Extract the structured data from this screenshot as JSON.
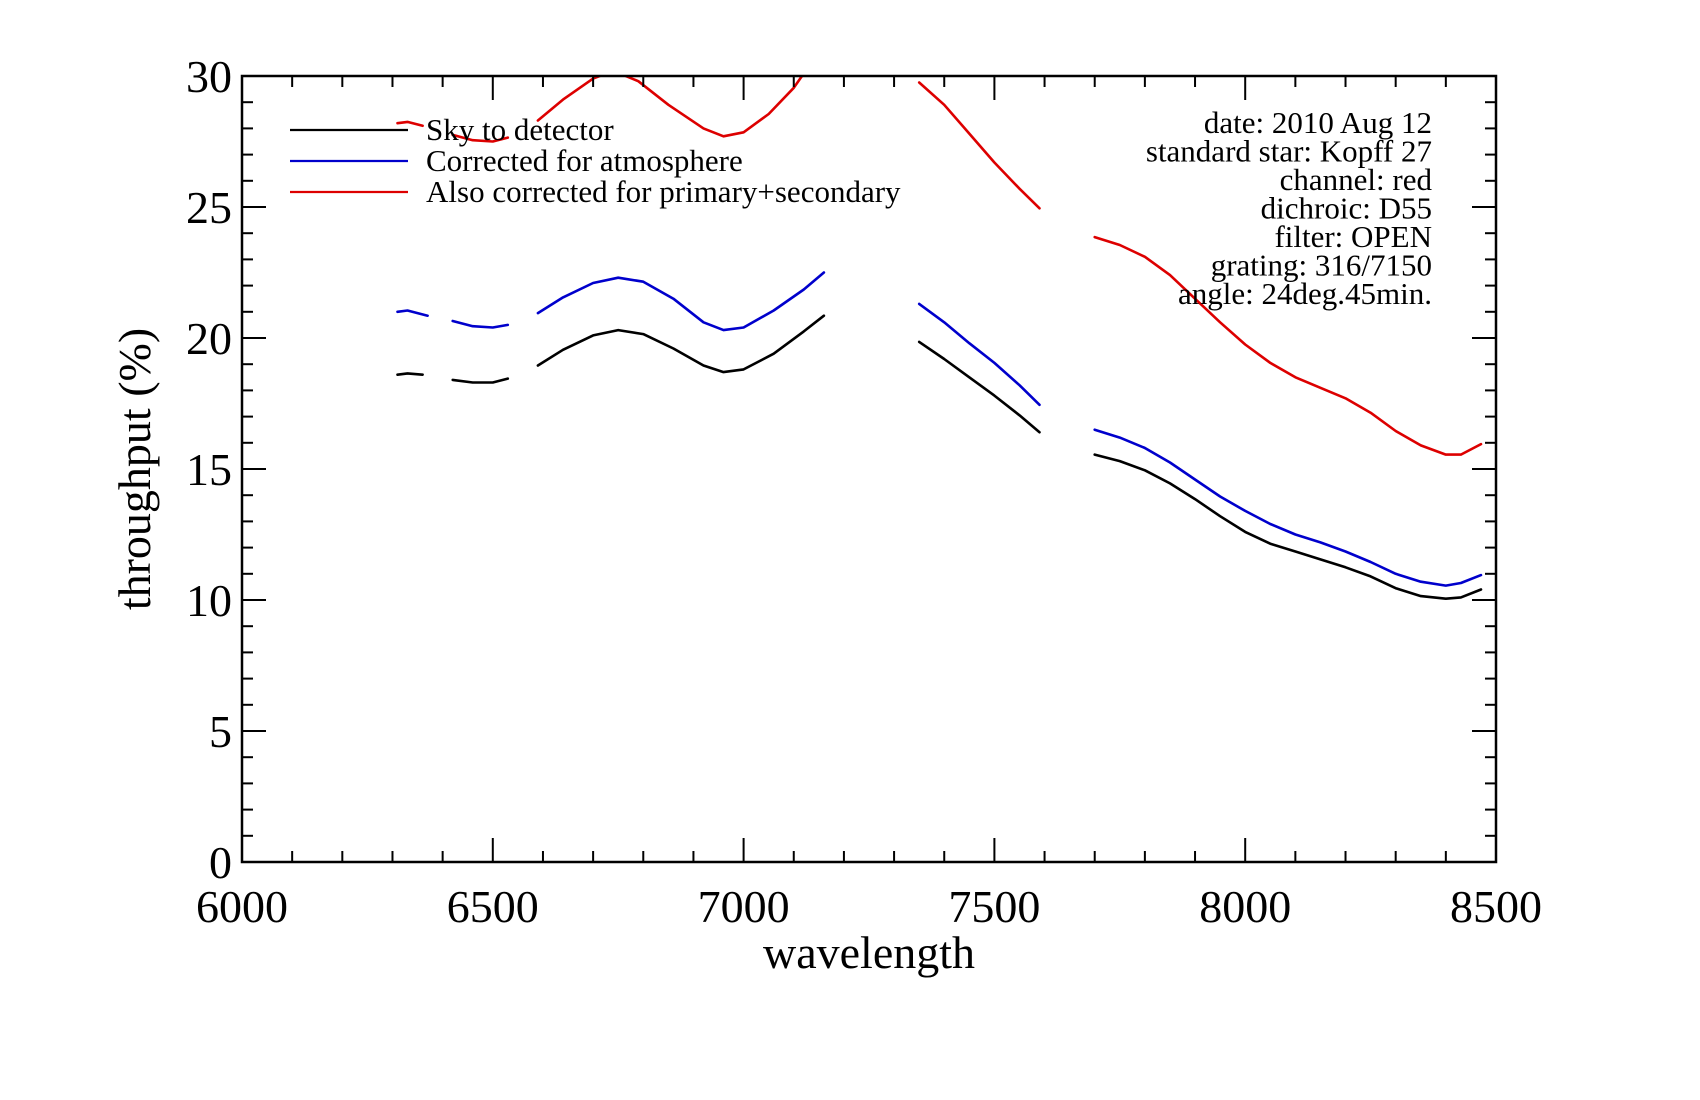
{
  "chart_data": {
    "type": "line",
    "xlabel": "wavelength",
    "ylabel": "throughput (%)",
    "xlim": [
      6000,
      8500
    ],
    "ylim": [
      0,
      30
    ],
    "x_ticks": [
      6000,
      6500,
      7000,
      7500,
      8000,
      8500
    ],
    "y_ticks": [
      0,
      5,
      10,
      15,
      20,
      25,
      30
    ],
    "x_minor_step": 100,
    "y_minor_step": 1,
    "grid": false,
    "legend_position": "top-left",
    "annotations": [
      "date: 2010 Aug 12",
      "standard star: Kopff 27",
      "channel: red",
      "dichroic: D55",
      "filter: OPEN",
      "grating: 316/7150",
      "angle: 24deg.45min."
    ],
    "series": [
      {
        "name": "Sky to detector",
        "color": "#000000",
        "segments": [
          [
            [
              6310,
              18.6
            ],
            [
              6330,
              18.65
            ],
            [
              6360,
              18.6
            ]
          ],
          [
            [
              6420,
              18.4
            ],
            [
              6460,
              18.3
            ],
            [
              6500,
              18.3
            ],
            [
              6530,
              18.45
            ]
          ],
          [
            [
              6590,
              18.95
            ],
            [
              6640,
              19.55
            ],
            [
              6700,
              20.1
            ],
            [
              6750,
              20.3
            ],
            [
              6800,
              20.15
            ],
            [
              6860,
              19.6
            ],
            [
              6920,
              18.95
            ],
            [
              6960,
              18.7
            ],
            [
              7000,
              18.8
            ],
            [
              7060,
              19.4
            ],
            [
              7120,
              20.25
            ],
            [
              7160,
              20.85
            ]
          ],
          [
            [
              7350,
              19.85
            ],
            [
              7400,
              19.2
            ],
            [
              7450,
              18.5
            ],
            [
              7500,
              17.8
            ],
            [
              7550,
              17.05
            ],
            [
              7590,
              16.4
            ]
          ],
          [
            [
              7700,
              15.55
            ],
            [
              7750,
              15.3
            ],
            [
              7800,
              14.95
            ],
            [
              7850,
              14.45
            ],
            [
              7900,
              13.85
            ],
            [
              7950,
              13.2
            ],
            [
              8000,
              12.6
            ],
            [
              8050,
              12.15
            ],
            [
              8100,
              11.85
            ],
            [
              8150,
              11.55
            ],
            [
              8200,
              11.25
            ],
            [
              8250,
              10.9
            ],
            [
              8300,
              10.45
            ],
            [
              8350,
              10.15
            ],
            [
              8400,
              10.05
            ],
            [
              8430,
              10.1
            ],
            [
              8470,
              10.4
            ]
          ]
        ]
      },
      {
        "name": "Corrected for atmosphere",
        "color": "#0000cc",
        "segments": [
          [
            [
              6310,
              21.0
            ],
            [
              6330,
              21.05
            ],
            [
              6370,
              20.85
            ]
          ],
          [
            [
              6420,
              20.65
            ],
            [
              6460,
              20.45
            ],
            [
              6500,
              20.4
            ],
            [
              6530,
              20.5
            ]
          ],
          [
            [
              6590,
              20.95
            ],
            [
              6640,
              21.55
            ],
            [
              6700,
              22.1
            ],
            [
              6750,
              22.3
            ],
            [
              6800,
              22.15
            ],
            [
              6860,
              21.5
            ],
            [
              6920,
              20.6
            ],
            [
              6960,
              20.3
            ],
            [
              7000,
              20.4
            ],
            [
              7060,
              21.05
            ],
            [
              7120,
              21.85
            ],
            [
              7160,
              22.5
            ]
          ],
          [
            [
              7350,
              21.3
            ],
            [
              7400,
              20.6
            ],
            [
              7450,
              19.8
            ],
            [
              7500,
              19.05
            ],
            [
              7550,
              18.2
            ],
            [
              7590,
              17.45
            ]
          ],
          [
            [
              7700,
              16.5
            ],
            [
              7750,
              16.2
            ],
            [
              7800,
              15.8
            ],
            [
              7850,
              15.25
            ],
            [
              7900,
              14.6
            ],
            [
              7950,
              13.95
            ],
            [
              8000,
              13.4
            ],
            [
              8050,
              12.9
            ],
            [
              8100,
              12.5
            ],
            [
              8150,
              12.2
            ],
            [
              8200,
              11.85
            ],
            [
              8250,
              11.45
            ],
            [
              8300,
              11.0
            ],
            [
              8350,
              10.7
            ],
            [
              8400,
              10.55
            ],
            [
              8430,
              10.65
            ],
            [
              8470,
              10.95
            ]
          ]
        ]
      },
      {
        "name": "Also corrected for primary+secondary",
        "color": "#dd0000",
        "segments": [
          [
            [
              6310,
              28.2
            ],
            [
              6330,
              28.25
            ],
            [
              6360,
              28.1
            ]
          ],
          [
            [
              6420,
              27.75
            ],
            [
              6460,
              27.55
            ],
            [
              6500,
              27.5
            ],
            [
              6530,
              27.65
            ]
          ],
          [
            [
              6590,
              28.3
            ],
            [
              6640,
              29.1
            ],
            [
              6700,
              29.9
            ],
            [
              6740,
              30.2
            ],
            [
              6790,
              29.8
            ],
            [
              6850,
              28.9
            ],
            [
              6920,
              28.0
            ],
            [
              6960,
              27.7
            ],
            [
              7000,
              27.85
            ],
            [
              7050,
              28.55
            ],
            [
              7100,
              29.55
            ],
            [
              7120,
              30.1
            ]
          ],
          [
            [
              7350,
              29.75
            ],
            [
              7400,
              28.9
            ],
            [
              7450,
              27.8
            ],
            [
              7500,
              26.7
            ],
            [
              7550,
              25.7
            ],
            [
              7590,
              24.95
            ]
          ],
          [
            [
              7700,
              23.85
            ],
            [
              7750,
              23.55
            ],
            [
              7800,
              23.1
            ],
            [
              7850,
              22.4
            ],
            [
              7900,
              21.5
            ],
            [
              7950,
              20.6
            ],
            [
              8000,
              19.75
            ],
            [
              8050,
              19.05
            ],
            [
              8100,
              18.5
            ],
            [
              8150,
              18.1
            ],
            [
              8200,
              17.7
            ],
            [
              8250,
              17.15
            ],
            [
              8300,
              16.45
            ],
            [
              8350,
              15.9
            ],
            [
              8400,
              15.55
            ],
            [
              8430,
              15.55
            ],
            [
              8470,
              15.95
            ]
          ]
        ]
      }
    ]
  }
}
